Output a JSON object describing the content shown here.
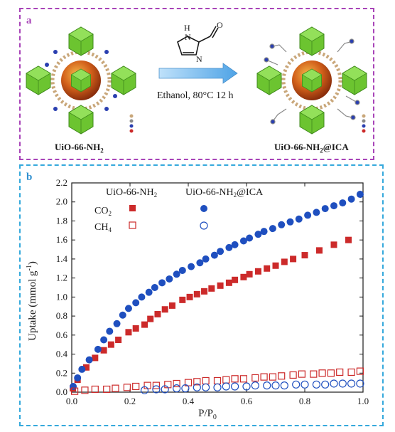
{
  "panel_a": {
    "letter": "a",
    "left_label": "UiO-66-NH",
    "left_label_sub": "2",
    "right_label": "UiO-66-NH",
    "right_label_sub": "2",
    "right_label_suffix": "@ICA",
    "conditions": "Ethanol, 80°C 12 h",
    "reagent_atoms": {
      "nh": "H",
      "n_ring": "N",
      "n_top": "N",
      "o": "O"
    }
  },
  "colors": {
    "border_a": "#a844b8",
    "border_b": "#35a9dc",
    "mof_node": "#7dcf3a",
    "sphere": "#d2601a",
    "arrow": "#5fb0e8",
    "co2": "#cc2a2a",
    "ch4": "#cc2a2a",
    "nh2_series": "#1f4fbf"
  },
  "chart_data": {
    "type": "scatter",
    "panel_letter": "b",
    "xlabel": "P/P",
    "xlabel_sub": "0",
    "ylabel": "Uptake (mmol g",
    "ylabel_sup": "-1",
    "ylabel_end": ")",
    "xlim": [
      0,
      1.0
    ],
    "ylim": [
      0,
      2.2
    ],
    "x_ticks": [
      "0.0",
      "0.2",
      "0.4",
      "0.6",
      "0.8",
      "1.0"
    ],
    "y_ticks": [
      "0.0",
      "0.2",
      "0.4",
      "0.6",
      "0.8",
      "1.0",
      "1.2",
      "1.4",
      "1.6",
      "1.8",
      "2.0",
      "2.2"
    ],
    "legend": {
      "col1": "UiO-66-NH",
      "col1_sub": "2",
      "col2": "UiO-66-NH",
      "col2_sub": "2",
      "col2_suffix": "@ICA",
      "row1": "CO",
      "row1_sub": "2",
      "row2": "CH",
      "row2_sub": "4"
    },
    "series": [
      {
        "key": "co2_nh2",
        "color": "#cc2a2a",
        "marker": "filled-square",
        "x": [
          0.004,
          0.02,
          0.05,
          0.08,
          0.11,
          0.135,
          0.16,
          0.195,
          0.22,
          0.25,
          0.27,
          0.295,
          0.32,
          0.345,
          0.38,
          0.405,
          0.43,
          0.455,
          0.48,
          0.51,
          0.54,
          0.56,
          0.59,
          0.61,
          0.64,
          0.67,
          0.7,
          0.73,
          0.76,
          0.8,
          0.85,
          0.9,
          0.95
        ],
        "y": [
          0.04,
          0.13,
          0.26,
          0.36,
          0.44,
          0.5,
          0.55,
          0.63,
          0.67,
          0.71,
          0.77,
          0.82,
          0.87,
          0.91,
          0.97,
          1.0,
          1.03,
          1.06,
          1.09,
          1.12,
          1.15,
          1.18,
          1.21,
          1.24,
          1.27,
          1.3,
          1.33,
          1.37,
          1.4,
          1.44,
          1.49,
          1.55,
          1.6
        ]
      },
      {
        "key": "co2_ica",
        "color": "#1f4fbf",
        "marker": "filled-circle",
        "x": [
          0.005,
          0.02,
          0.035,
          0.06,
          0.09,
          0.11,
          0.13,
          0.155,
          0.175,
          0.195,
          0.22,
          0.24,
          0.265,
          0.285,
          0.31,
          0.335,
          0.36,
          0.38,
          0.41,
          0.44,
          0.46,
          0.49,
          0.51,
          0.54,
          0.56,
          0.59,
          0.61,
          0.64,
          0.66,
          0.69,
          0.72,
          0.75,
          0.78,
          0.81,
          0.84,
          0.87,
          0.9,
          0.93,
          0.96,
          0.99
        ],
        "y": [
          0.06,
          0.15,
          0.24,
          0.34,
          0.45,
          0.55,
          0.64,
          0.72,
          0.81,
          0.88,
          0.94,
          1.0,
          1.05,
          1.1,
          1.15,
          1.19,
          1.24,
          1.28,
          1.32,
          1.36,
          1.4,
          1.44,
          1.48,
          1.52,
          1.55,
          1.59,
          1.62,
          1.66,
          1.69,
          1.72,
          1.76,
          1.79,
          1.82,
          1.86,
          1.89,
          1.93,
          1.96,
          1.99,
          2.03,
          2.08
        ]
      },
      {
        "key": "ch4_nh2",
        "color": "#cc2a2a",
        "marker": "open-square",
        "x": [
          0.01,
          0.045,
          0.08,
          0.12,
          0.15,
          0.19,
          0.22,
          0.26,
          0.29,
          0.33,
          0.36,
          0.4,
          0.43,
          0.46,
          0.5,
          0.53,
          0.56,
          0.59,
          0.63,
          0.66,
          0.69,
          0.72,
          0.76,
          0.79,
          0.83,
          0.86,
          0.89,
          0.92,
          0.96,
          0.99
        ],
        "y": [
          0.01,
          0.02,
          0.03,
          0.03,
          0.04,
          0.05,
          0.06,
          0.07,
          0.07,
          0.08,
          0.09,
          0.1,
          0.11,
          0.12,
          0.12,
          0.13,
          0.14,
          0.14,
          0.15,
          0.16,
          0.16,
          0.17,
          0.18,
          0.19,
          0.19,
          0.2,
          0.2,
          0.21,
          0.21,
          0.22
        ]
      },
      {
        "key": "ch4_ica",
        "color": "#1f4fbf",
        "marker": "open-circle",
        "x": [
          0.25,
          0.29,
          0.32,
          0.36,
          0.39,
          0.43,
          0.46,
          0.5,
          0.53,
          0.56,
          0.6,
          0.63,
          0.67,
          0.7,
          0.73,
          0.77,
          0.8,
          0.84,
          0.87,
          0.9,
          0.93,
          0.96,
          0.99
        ],
        "y": [
          0.02,
          0.03,
          0.03,
          0.04,
          0.04,
          0.05,
          0.05,
          0.05,
          0.06,
          0.06,
          0.06,
          0.07,
          0.07,
          0.07,
          0.07,
          0.08,
          0.08,
          0.08,
          0.08,
          0.09,
          0.09,
          0.09,
          0.09
        ]
      }
    ]
  }
}
